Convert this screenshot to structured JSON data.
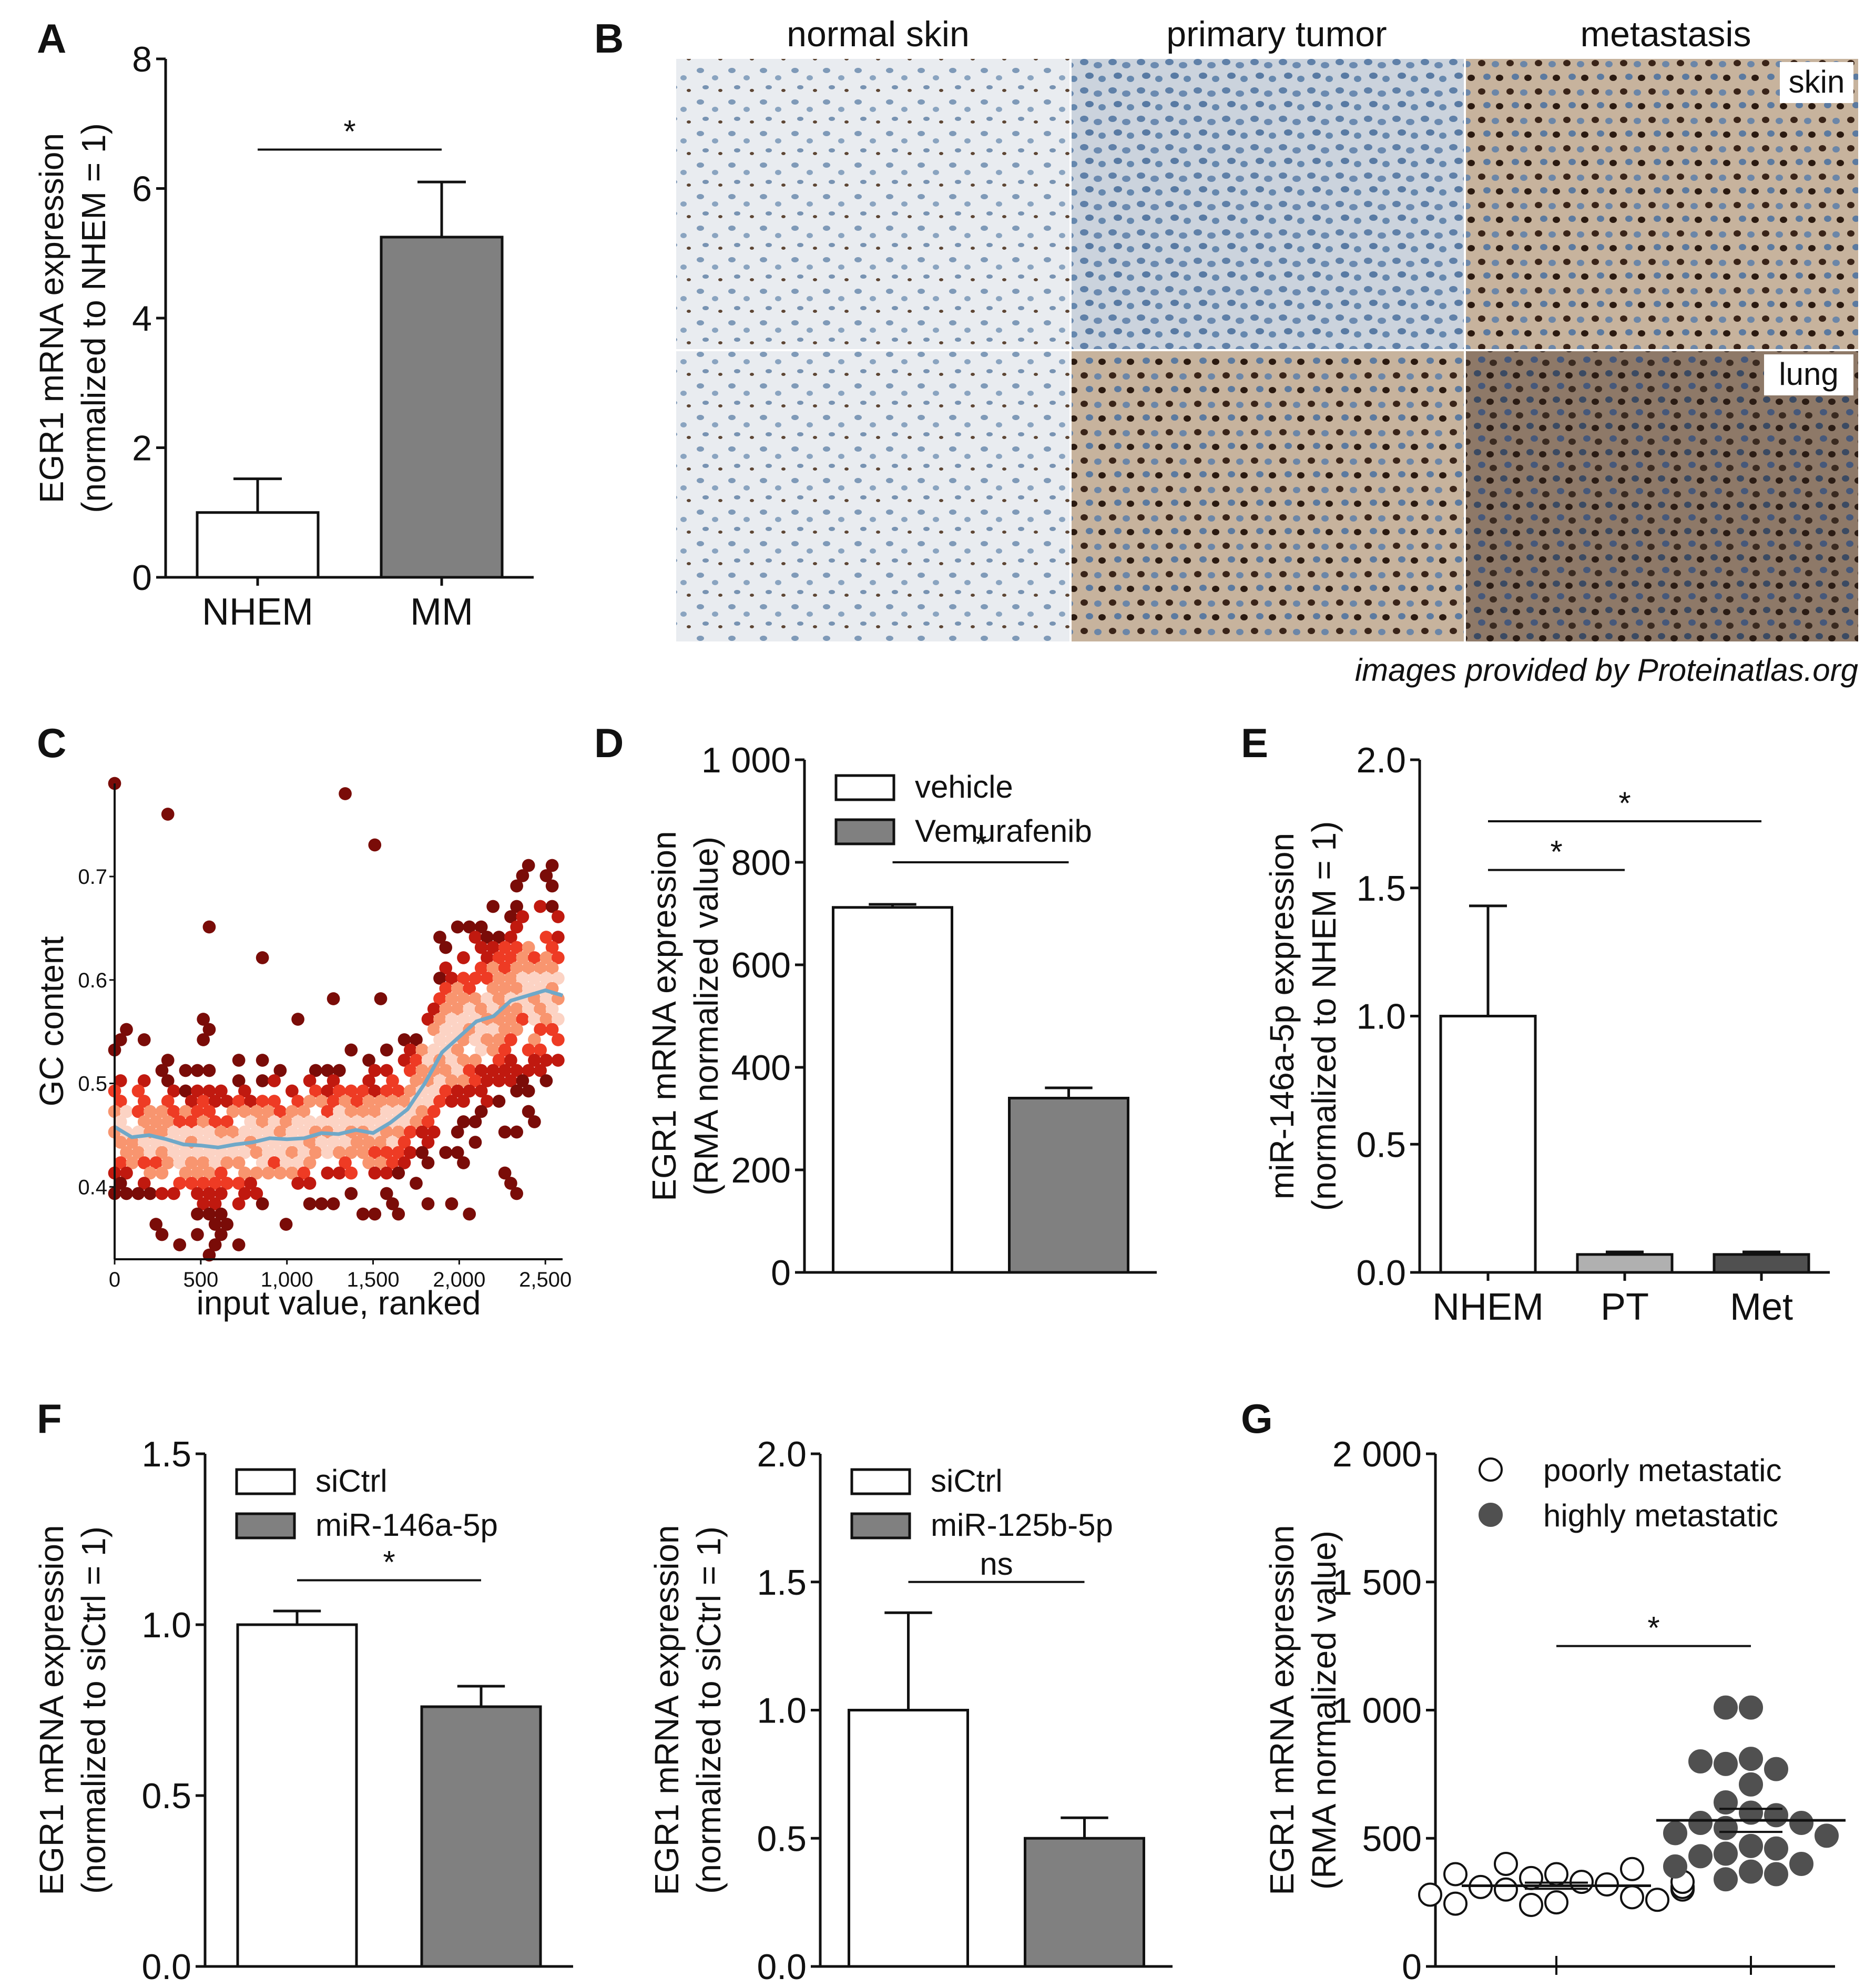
{
  "credit": "images provided by Proteinatlas.org",
  "panel_B": {
    "label": "B",
    "columns": [
      "normal skin",
      "primary tumor",
      "metastasis"
    ],
    "row_tags": [
      "skin",
      "lung"
    ]
  },
  "colors": {
    "white_bar": "#ffffff",
    "gray_bar": "#808080",
    "light_gray": "#b0b0b0",
    "dark_gray": "#505050",
    "smooth_line": "#6fa8c8"
  },
  "chart_data": [
    {
      "id": "A",
      "label": "A",
      "type": "bar",
      "categories": [
        "NHEM",
        "MM"
      ],
      "values": [
        1.0,
        5.25
      ],
      "errors": [
        0.52,
        0.85
      ],
      "ylabel": [
        "EGR1 mRNA expression",
        "(normalized to NHEM = 1)"
      ],
      "ylim": [
        0,
        8
      ],
      "yticks": [
        "0",
        "2",
        "4",
        "6",
        "8"
      ],
      "ytick_values": [
        0,
        2,
        4,
        6,
        8
      ],
      "fills": [
        "#ffffff",
        "#808080"
      ],
      "significance": [
        {
          "from": 0,
          "to": 1,
          "label": "*",
          "y": 6.6
        }
      ]
    },
    {
      "id": "C",
      "label": "C",
      "type": "scatter",
      "subtype": "hexbin density with running median",
      "xlabel": "input value, ranked",
      "ylabel": "GC content",
      "xlim": [
        0,
        2600
      ],
      "ylim": [
        0.33,
        0.79
      ],
      "xticks": [
        "0",
        "500",
        "1,000",
        "1,500",
        "2,000",
        "2,500"
      ],
      "xtick_values": [
        0,
        500,
        1000,
        1500,
        2000,
        2500
      ],
      "yticks": [
        "0.4",
        "0.5",
        "0.6",
        "0.7"
      ],
      "ytick_values": [
        0.4,
        0.5,
        0.6,
        0.7
      ],
      "trend": {
        "x": [
          0,
          100,
          200,
          300,
          400,
          500,
          600,
          700,
          800,
          900,
          1000,
          1100,
          1200,
          1300,
          1400,
          1500,
          1600,
          1700,
          1800,
          1900,
          2000,
          2100,
          2200,
          2300,
          2400,
          2500,
          2600
        ],
        "y": [
          0.458,
          0.448,
          0.45,
          0.446,
          0.441,
          0.44,
          0.438,
          0.441,
          0.443,
          0.447,
          0.446,
          0.447,
          0.452,
          0.451,
          0.455,
          0.452,
          0.462,
          0.475,
          0.5,
          0.53,
          0.545,
          0.56,
          0.565,
          0.58,
          0.585,
          0.59,
          0.585
        ]
      }
    },
    {
      "id": "D",
      "label": "D",
      "type": "bar",
      "categories": [
        "vehicle",
        "Vemurafenib"
      ],
      "values": [
        712,
        340
      ],
      "errors": [
        6,
        20
      ],
      "ylabel": [
        "EGR1 mRNA expression",
        "(RMA normalized value)"
      ],
      "ylim": [
        0,
        1000
      ],
      "yticks": [
        "0",
        "200",
        "400",
        "600",
        "800",
        "1 000"
      ],
      "ytick_values": [
        0,
        200,
        400,
        600,
        800,
        1000
      ],
      "legend": [
        "vehicle",
        "Vemurafenib"
      ],
      "fills": [
        "#ffffff",
        "#808080"
      ],
      "significance": [
        {
          "from": 0,
          "to": 1,
          "label": "*",
          "y": 800
        }
      ]
    },
    {
      "id": "E",
      "label": "E",
      "type": "bar",
      "categories": [
        "NHEM",
        "PT",
        "Met"
      ],
      "values": [
        1.0,
        0.07,
        0.07
      ],
      "errors": [
        0.43,
        0.01,
        0.01
      ],
      "ylabel": [
        "miR-146a-5p expression",
        "(normalized to NHEM = 1)"
      ],
      "ylim": [
        0,
        2.0
      ],
      "yticks": [
        "0.0",
        "0.5",
        "1.0",
        "1.5",
        "2.0"
      ],
      "ytick_values": [
        0,
        0.5,
        1.0,
        1.5,
        2.0
      ],
      "fills": [
        "#ffffff",
        "#b0b0b0",
        "#505050"
      ],
      "significance": [
        {
          "from": 0,
          "to": 1,
          "label": "*",
          "y": 1.57
        },
        {
          "from": 0,
          "to": 2,
          "label": "*",
          "y": 1.76
        }
      ]
    },
    {
      "id": "F1",
      "label": "F",
      "type": "bar",
      "categories": [
        "siCtrl",
        "miR-146a-5p"
      ],
      "values": [
        1.0,
        0.76
      ],
      "errors": [
        0.04,
        0.06
      ],
      "ylabel": [
        "EGR1 mRNA expression",
        "(normalized to siCtrl = 1)"
      ],
      "ylim": [
        0,
        1.5
      ],
      "yticks": [
        "0.0",
        "0.5",
        "1.0",
        "1.5"
      ],
      "ytick_values": [
        0,
        0.5,
        1.0,
        1.5
      ],
      "legend": [
        "siCtrl",
        "miR-146a-5p"
      ],
      "fills": [
        "#ffffff",
        "#808080"
      ],
      "significance": [
        {
          "from": 0,
          "to": 1,
          "label": "*",
          "y": 1.13
        }
      ]
    },
    {
      "id": "F2",
      "label": "",
      "type": "bar",
      "categories": [
        "siCtrl",
        "miR-125b-5p"
      ],
      "values": [
        1.0,
        0.5
      ],
      "errors": [
        0.38,
        0.08
      ],
      "ylabel": [
        "EGR1 mRNA expression",
        "(normalized to siCtrl = 1)"
      ],
      "ylim": [
        0,
        2.0
      ],
      "yticks": [
        "0.0",
        "0.5",
        "1.0",
        "1.5",
        "2.0"
      ],
      "ytick_values": [
        0,
        0.5,
        1.0,
        1.5,
        2.0
      ],
      "legend": [
        "siCtrl",
        "miR-125b-5p"
      ],
      "fills": [
        "#ffffff",
        "#808080"
      ],
      "significance": [
        {
          "from": 0,
          "to": 1,
          "label": "ns",
          "y": 1.5
        }
      ]
    },
    {
      "id": "G",
      "label": "G",
      "type": "scatter",
      "ylabel": [
        "EGR1 mRNA expression",
        "(RMA normalized value)"
      ],
      "ylim": [
        0,
        2000
      ],
      "yticks": [
        "0",
        "500",
        "1 000",
        "1 500",
        "2 000"
      ],
      "ytick_values": [
        0,
        500,
        1000,
        1500,
        2000
      ],
      "legend": [
        "poorly metastatic",
        "highly metastatic"
      ],
      "series": [
        {
          "name": "poorly metastatic",
          "values": [
            360,
            345,
            330,
            300,
            320,
            310,
            270,
            250,
            240,
            245,
            260,
            280,
            300,
            310,
            330,
            360,
            400,
            380
          ],
          "mean": 315,
          "sem": 12
        },
        {
          "name": "highly metastatic",
          "values": [
            1010,
            1010,
            810,
            790,
            770,
            800,
            710,
            640,
            600,
            590,
            560,
            560,
            540,
            520,
            510,
            470,
            460,
            440,
            430,
            400,
            390,
            370,
            360,
            340
          ],
          "mean": 570,
          "sem": 45
        }
      ],
      "significance": [
        {
          "from": 0,
          "to": 1,
          "label": "*",
          "y": 1250
        }
      ]
    }
  ]
}
